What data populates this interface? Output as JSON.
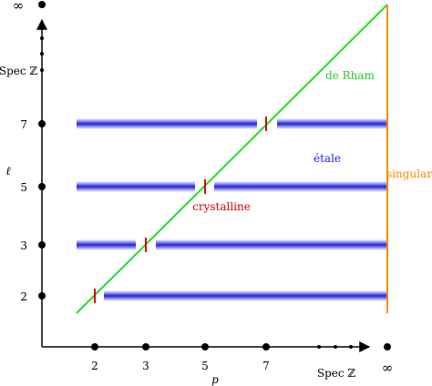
{
  "axes": {
    "x_label": "p",
    "y_label": "ℓ",
    "x_end_label": "Spec ℤ",
    "y_end_label": "Spec ℤ",
    "infinity": "∞"
  },
  "x_ticks": [
    "2",
    "3",
    "5",
    "7"
  ],
  "y_ticks": [
    "2",
    "3",
    "5",
    "7"
  ],
  "regions": {
    "de_rham": "de Rham",
    "etale": "étale",
    "crystalline": "crystalline",
    "singular": "singular"
  },
  "colors": {
    "de_rham": "#22dd22",
    "etale": "#2222dd",
    "crystalline": "#dd0000",
    "singular": "#ff8800",
    "axis": "#000000"
  }
}
